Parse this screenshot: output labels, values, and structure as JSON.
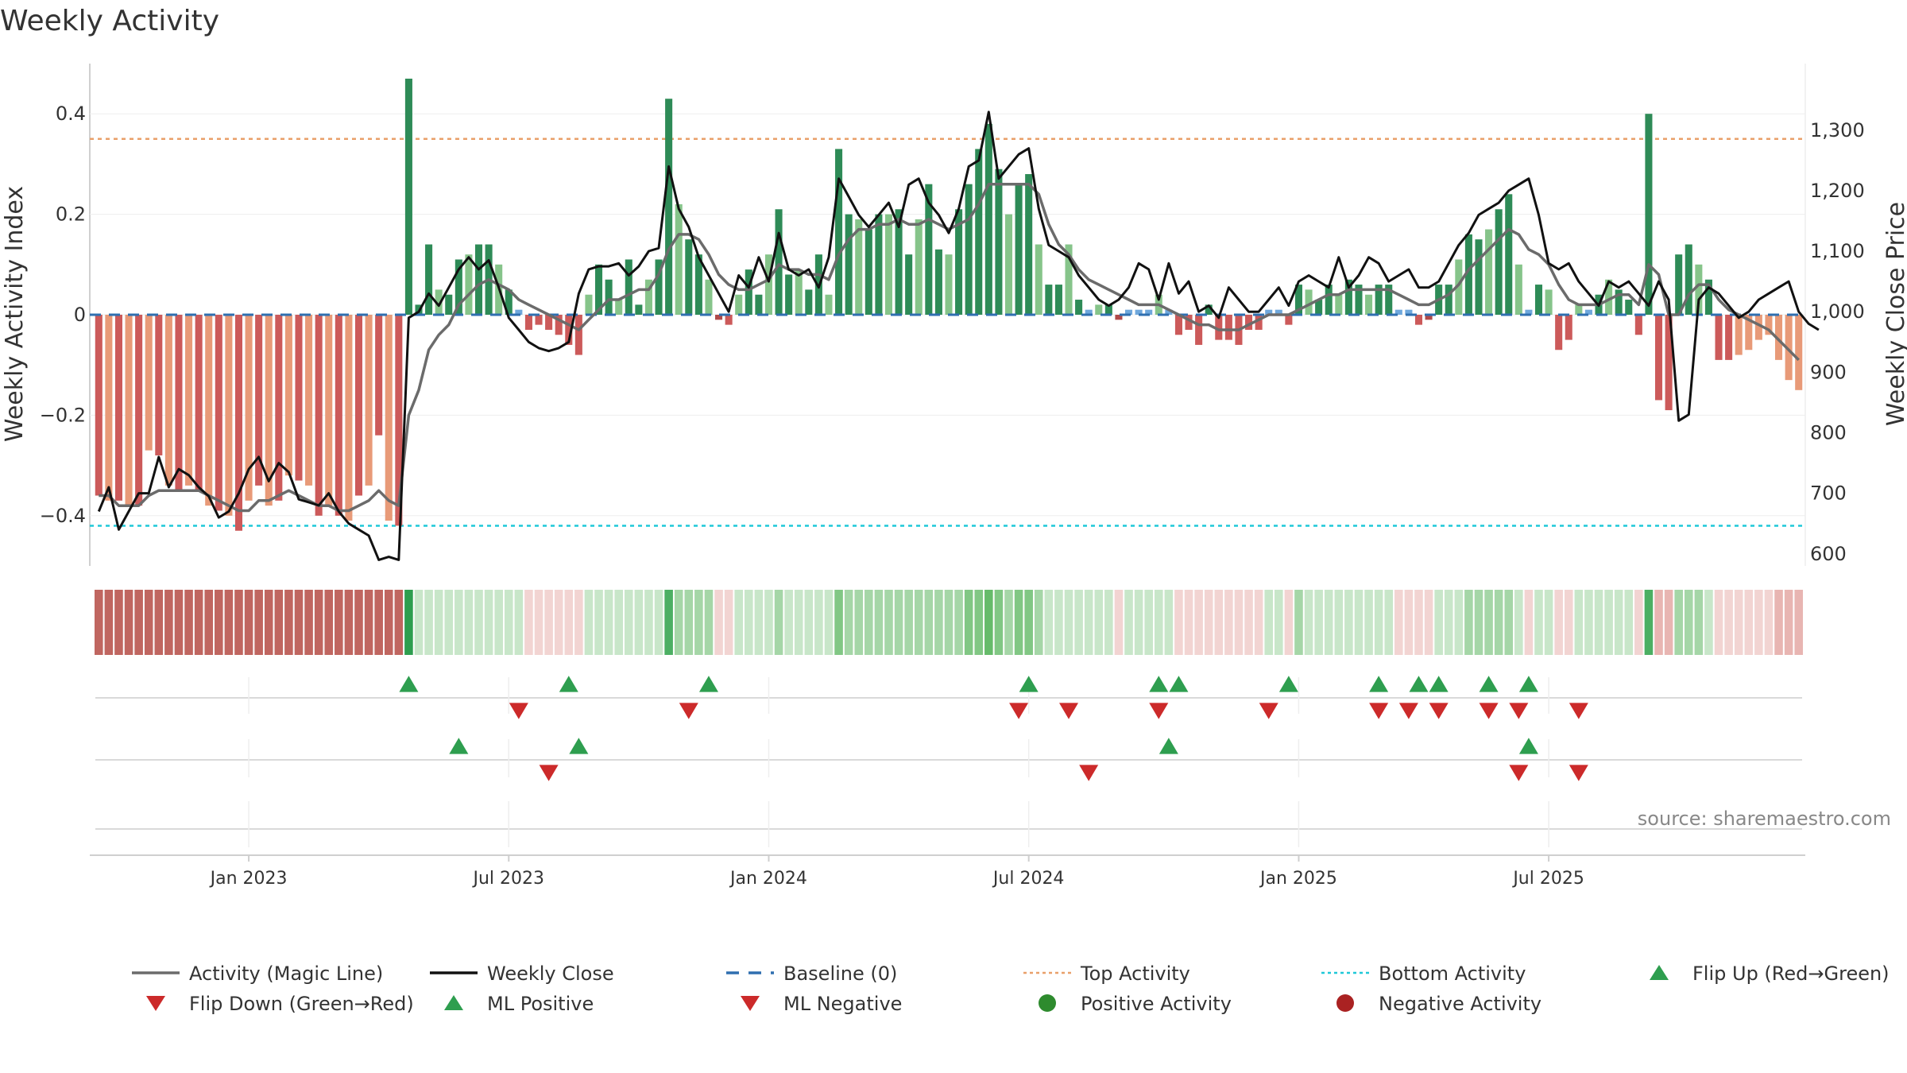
{
  "chart_data": {
    "type": "bar",
    "title": "Weekly Activity",
    "ylabel": "Weekly Activity Index",
    "y2label": "Weekly Close Price",
    "ylim": [
      -0.5,
      0.5
    ],
    "y2lim": [
      580,
      1410
    ],
    "yticks": [
      {
        "v": 0.4,
        "label": "0.4"
      },
      {
        "v": 0.2,
        "label": "0.2"
      },
      {
        "v": 0,
        "label": "0"
      },
      {
        "v": -0.2,
        "label": "−0.2"
      },
      {
        "v": -0.4,
        "label": "−0.4"
      }
    ],
    "y2ticks": [
      {
        "v": 1300,
        "label": "1,300"
      },
      {
        "v": 1200,
        "label": "1,200"
      },
      {
        "v": 1100,
        "label": "1,100"
      },
      {
        "v": 1000,
        "label": "1,000"
      },
      {
        "v": 900,
        "label": "900"
      },
      {
        "v": 800,
        "label": "800"
      },
      {
        "v": 700,
        "label": "700"
      },
      {
        "v": 600,
        "label": "600"
      }
    ],
    "xticks": [
      {
        "w": 15,
        "label": "Jan 2023"
      },
      {
        "w": 41,
        "label": "Jul 2023"
      },
      {
        "w": 67,
        "label": "Jan 2024"
      },
      {
        "w": 93,
        "label": "Jul 2024"
      },
      {
        "w": 120,
        "label": "Jan 2025"
      },
      {
        "w": 145,
        "label": "Jul 2025"
      }
    ],
    "top_activity": 0.35,
    "bottom_activity": -0.42,
    "activity": [
      -0.36,
      -0.37,
      -0.37,
      -0.38,
      -0.38,
      -0.27,
      -0.28,
      -0.34,
      -0.35,
      -0.34,
      -0.35,
      -0.38,
      -0.39,
      -0.4,
      -0.43,
      -0.37,
      -0.34,
      -0.38,
      -0.37,
      -0.32,
      -0.33,
      -0.34,
      -0.4,
      -0.38,
      -0.4,
      -0.41,
      -0.36,
      -0.34,
      -0.24,
      -0.41,
      -0.42,
      0.47,
      0.02,
      0.14,
      0.05,
      0.04,
      0.11,
      0.12,
      0.14,
      0.14,
      0.1,
      0.05,
      0.01,
      -0.03,
      -0.02,
      -0.03,
      -0.04,
      -0.06,
      -0.08,
      0.04,
      0.1,
      0.07,
      0.03,
      0.11,
      0.02,
      0.07,
      0.11,
      0.43,
      0.22,
      0.15,
      0.12,
      0.07,
      -0.01,
      -0.02,
      0.04,
      0.09,
      0.04,
      0.12,
      0.21,
      0.08,
      0.09,
      0.05,
      0.12,
      0.04,
      0.33,
      0.2,
      0.19,
      0.17,
      0.2,
      0.2,
      0.21,
      0.12,
      0.19,
      0.26,
      0.13,
      0.12,
      0.21,
      0.26,
      0.33,
      0.38,
      0.29,
      0.2,
      0.26,
      0.28,
      0.14,
      0.06,
      0.06,
      0.14,
      0.03,
      0.01,
      0.02,
      0.02,
      -0.01,
      0.01,
      0.01,
      0.01,
      0.04,
      0.01,
      -0.04,
      -0.03,
      -0.06,
      0.02,
      -0.05,
      -0.05,
      -0.06,
      -0.03,
      -0.03,
      0.01,
      0.01,
      -0.02,
      0.06,
      0.05,
      0.03,
      0.06,
      0.04,
      0.07,
      0.06,
      0.04,
      0.06,
      0.06,
      0.01,
      0.01,
      -0.02,
      -0.01,
      0.06,
      0.06,
      0.11,
      0.16,
      0.15,
      0.17,
      0.21,
      0.24,
      0.1,
      0.01,
      0.06,
      0.05,
      -0.07,
      -0.05,
      0.02,
      0.01,
      0.04,
      0.07,
      0.05,
      0.03,
      -0.04,
      0.4,
      -0.17,
      -0.19,
      0.12,
      0.14,
      0.1,
      0.07,
      -0.09,
      -0.09,
      -0.08,
      -0.07,
      -0.05,
      -0.04,
      -0.09,
      -0.13,
      -0.15
    ],
    "magic_line": [
      -0.36,
      -0.36,
      -0.38,
      -0.38,
      -0.38,
      -0.36,
      -0.35,
      -0.35,
      -0.35,
      -0.35,
      -0.35,
      -0.36,
      -0.37,
      -0.38,
      -0.39,
      -0.39,
      -0.37,
      -0.37,
      -0.36,
      -0.35,
      -0.36,
      -0.37,
      -0.38,
      -0.38,
      -0.39,
      -0.39,
      -0.38,
      -0.37,
      -0.35,
      -0.37,
      -0.38,
      -0.2,
      -0.15,
      -0.07,
      -0.04,
      -0.02,
      0.02,
      0.04,
      0.06,
      0.07,
      0.06,
      0.05,
      0.03,
      0.02,
      0.01,
      0.0,
      -0.01,
      -0.02,
      -0.03,
      -0.01,
      0.01,
      0.03,
      0.03,
      0.04,
      0.05,
      0.05,
      0.08,
      0.13,
      0.16,
      0.16,
      0.15,
      0.12,
      0.08,
      0.06,
      0.05,
      0.05,
      0.06,
      0.07,
      0.1,
      0.09,
      0.09,
      0.08,
      0.08,
      0.07,
      0.12,
      0.15,
      0.17,
      0.17,
      0.18,
      0.18,
      0.19,
      0.18,
      0.18,
      0.19,
      0.18,
      0.17,
      0.18,
      0.19,
      0.22,
      0.26,
      0.26,
      0.26,
      0.26,
      0.26,
      0.24,
      0.18,
      0.14,
      0.12,
      0.09,
      0.07,
      0.06,
      0.05,
      0.04,
      0.03,
      0.02,
      0.02,
      0.02,
      0.01,
      0.0,
      -0.01,
      -0.02,
      -0.02,
      -0.03,
      -0.03,
      -0.03,
      -0.02,
      -0.01,
      0.0,
      0.0,
      0.0,
      0.01,
      0.02,
      0.03,
      0.04,
      0.04,
      0.05,
      0.05,
      0.05,
      0.05,
      0.05,
      0.04,
      0.03,
      0.02,
      0.02,
      0.03,
      0.04,
      0.06,
      0.09,
      0.11,
      0.13,
      0.15,
      0.17,
      0.16,
      0.13,
      0.12,
      0.1,
      0.06,
      0.03,
      0.02,
      0.02,
      0.02,
      0.03,
      0.04,
      0.04,
      0.02,
      0.1,
      0.08,
      0.0,
      0.0,
      0.04,
      0.06,
      0.06,
      0.03,
      0.01,
      0.0,
      -0.01,
      -0.02,
      -0.03,
      -0.05,
      -0.07,
      -0.09
    ],
    "weekly_close": [
      670,
      710,
      640,
      670,
      700,
      700,
      760,
      710,
      740,
      730,
      710,
      695,
      660,
      670,
      700,
      740,
      760,
      720,
      750,
      735,
      690,
      685,
      680,
      700,
      670,
      650,
      640,
      630,
      590,
      595,
      590,
      990,
      1000,
      1030,
      1010,
      1040,
      1070,
      1090,
      1070,
      1085,
      1040,
      990,
      970,
      950,
      940,
      935,
      940,
      950,
      1030,
      1070,
      1075,
      1075,
      1080,
      1060,
      1075,
      1100,
      1105,
      1240,
      1170,
      1140,
      1090,
      1060,
      1030,
      1000,
      1060,
      1040,
      1090,
      1050,
      1130,
      1070,
      1060,
      1070,
      1040,
      1090,
      1220,
      1190,
      1160,
      1140,
      1160,
      1180,
      1140,
      1210,
      1220,
      1180,
      1160,
      1130,
      1170,
      1240,
      1250,
      1330,
      1220,
      1240,
      1260,
      1270,
      1170,
      1110,
      1100,
      1090,
      1060,
      1040,
      1020,
      1010,
      1020,
      1040,
      1080,
      1070,
      1020,
      1080,
      1030,
      1050,
      1000,
      1010,
      990,
      1040,
      1020,
      1000,
      1000,
      1020,
      1040,
      1010,
      1050,
      1060,
      1050,
      1040,
      1090,
      1040,
      1060,
      1090,
      1080,
      1050,
      1060,
      1070,
      1040,
      1040,
      1050,
      1080,
      1110,
      1130,
      1160,
      1170,
      1180,
      1200,
      1210,
      1220,
      1160,
      1080,
      1070,
      1080,
      1050,
      1030,
      1010,
      1050,
      1040,
      1050,
      1030,
      1010,
      1050,
      1020,
      820,
      830,
      1020,
      1040,
      1030,
      1010,
      990,
      1000,
      1020,
      1030,
      1040,
      1050,
      1000,
      980,
      970
    ],
    "heat_colors": [
      "#c06660",
      "#c06660",
      "#c06660",
      "#c06660",
      "#c06660",
      "#c06660",
      "#c06660",
      "#c06660",
      "#c06660",
      "#c06660",
      "#c06660",
      "#c06660",
      "#c06660",
      "#c06660",
      "#c06660",
      "#c06660",
      "#c06660",
      "#c06660",
      "#c06660",
      "#c06660",
      "#c06660",
      "#c06660",
      "#c06660",
      "#c06660",
      "#c06660",
      "#c06660",
      "#c06660",
      "#c06660",
      "#c06660",
      "#c06660",
      "#c06660",
      "#2e9e4f",
      "#c8e6c9",
      "#c8e6c9",
      "#c8e6c9",
      "#c8e6c9",
      "#c8e6c9",
      "#c8e6c9",
      "#c8e6c9",
      "#c8e6c9",
      "#c8e6c9",
      "#c8e6c9",
      "#c8e6c9",
      "#f2d4d2",
      "#f2d4d2",
      "#f2d4d2",
      "#f2d4d2",
      "#f2d4d2",
      "#f2d4d2",
      "#c8e6c9",
      "#c8e6c9",
      "#c8e6c9",
      "#c8e6c9",
      "#c8e6c9",
      "#c8e6c9",
      "#c8e6c9",
      "#c8e6c9",
      "#4caf63",
      "#a5d6a7",
      "#a5d6a7",
      "#a5d6a7",
      "#a5d6a7",
      "#f2d4d2",
      "#f2d4d2",
      "#c8e6c9",
      "#c8e6c9",
      "#c8e6c9",
      "#c8e6c9",
      "#a5d6a7",
      "#c8e6c9",
      "#c8e6c9",
      "#c8e6c9",
      "#c8e6c9",
      "#c8e6c9",
      "#81c784",
      "#a5d6a7",
      "#a5d6a7",
      "#a5d6a7",
      "#a5d6a7",
      "#a5d6a7",
      "#a5d6a7",
      "#a5d6a7",
      "#a5d6a7",
      "#a5d6a7",
      "#a5d6a7",
      "#a5d6a7",
      "#a5d6a7",
      "#81c784",
      "#81c784",
      "#66bb6a",
      "#81c784",
      "#a5d6a7",
      "#81c784",
      "#81c784",
      "#a5d6a7",
      "#c8e6c9",
      "#c8e6c9",
      "#c8e6c9",
      "#c8e6c9",
      "#c8e6c9",
      "#c8e6c9",
      "#c8e6c9",
      "#f2d4d2",
      "#c8e6c9",
      "#c8e6c9",
      "#c8e6c9",
      "#c8e6c9",
      "#c8e6c9",
      "#f2d4d2",
      "#f2d4d2",
      "#f2d4d2",
      "#f2d4d2",
      "#f2d4d2",
      "#f2d4d2",
      "#f2d4d2",
      "#f2d4d2",
      "#f2d4d2",
      "#c8e6c9",
      "#c8e6c9",
      "#f2d4d2",
      "#a5d6a7",
      "#c8e6c9",
      "#c8e6c9",
      "#c8e6c9",
      "#c8e6c9",
      "#c8e6c9",
      "#c8e6c9",
      "#c8e6c9",
      "#c8e6c9",
      "#c8e6c9",
      "#f2d4d2",
      "#f2d4d2",
      "#f2d4d2",
      "#f2d4d2",
      "#c8e6c9",
      "#c8e6c9",
      "#c8e6c9",
      "#a5d6a7",
      "#a5d6a7",
      "#a5d6a7",
      "#a5d6a7",
      "#a5d6a7",
      "#c8e6c9",
      "#f2d4d2",
      "#c8e6c9",
      "#c8e6c9",
      "#f2d4d2",
      "#f2d4d2",
      "#c8e6c9",
      "#c8e6c9",
      "#c8e6c9",
      "#c8e6c9",
      "#c8e6c9",
      "#c8e6c9",
      "#f2d4d2",
      "#4caf63",
      "#e8b5b2",
      "#e8b5b2",
      "#a5d6a7",
      "#a5d6a7",
      "#a5d6a7",
      "#c8e6c9",
      "#f2d4d2",
      "#f2d4d2",
      "#f2d4d2",
      "#f2d4d2",
      "#f2d4d2",
      "#f2d4d2",
      "#e8b5b2",
      "#e8b5b2",
      "#e8b5b2"
    ],
    "flip_up": [
      31,
      47,
      61,
      93,
      106,
      108,
      119,
      128,
      132,
      134,
      139,
      143
    ],
    "flip_down": [
      42,
      59,
      92,
      97,
      106,
      117,
      128,
      131,
      134,
      139,
      142,
      148
    ],
    "ml_positive": [
      36,
      48,
      107,
      143
    ],
    "ml_negative": [
      45,
      99,
      142,
      148
    ],
    "source": "source: sharemaestro.com",
    "legend": [
      {
        "label": "Activity (Magic Line)",
        "symbol": "line",
        "color": "#6b6b6b"
      },
      {
        "label": "Weekly Close",
        "symbol": "line",
        "color": "#111111"
      },
      {
        "label": "Baseline (0)",
        "symbol": "dash",
        "color": "#2f6fb0"
      },
      {
        "label": "Top Activity",
        "symbol": "dot",
        "color": "#e9a06a"
      },
      {
        "label": "Bottom Activity",
        "symbol": "dot",
        "color": "#1fc8d8"
      },
      {
        "label": "Flip Up (Red→Green)",
        "symbol": "tri-up",
        "color": "#2e9e4f"
      },
      {
        "label": "Flip Down (Green→Red)",
        "symbol": "tri-down",
        "color": "#cc2a2a"
      },
      {
        "label": "ML Positive",
        "symbol": "tri-up",
        "color": "#2e9e4f"
      },
      {
        "label": "ML Negative",
        "symbol": "tri-down",
        "color": "#cc2a2a"
      },
      {
        "label": "Positive Activity",
        "symbol": "circle",
        "color": "#2e8b2e"
      },
      {
        "label": "Negative Activity",
        "symbol": "circle",
        "color": "#aa2222"
      }
    ],
    "colors": {
      "pos_strong": "#2e8b57",
      "pos_light": "#86c48a",
      "neg_strong": "#cc5a5a",
      "neg_light": "#e89a78",
      "neg_tiny": "#b04a4a",
      "pos_tiny": "#6fa8dc",
      "close": "#111111",
      "magic": "#6b6b6b",
      "flip_up": "#2e9e4f",
      "flip_down": "#cc2a2a"
    }
  }
}
